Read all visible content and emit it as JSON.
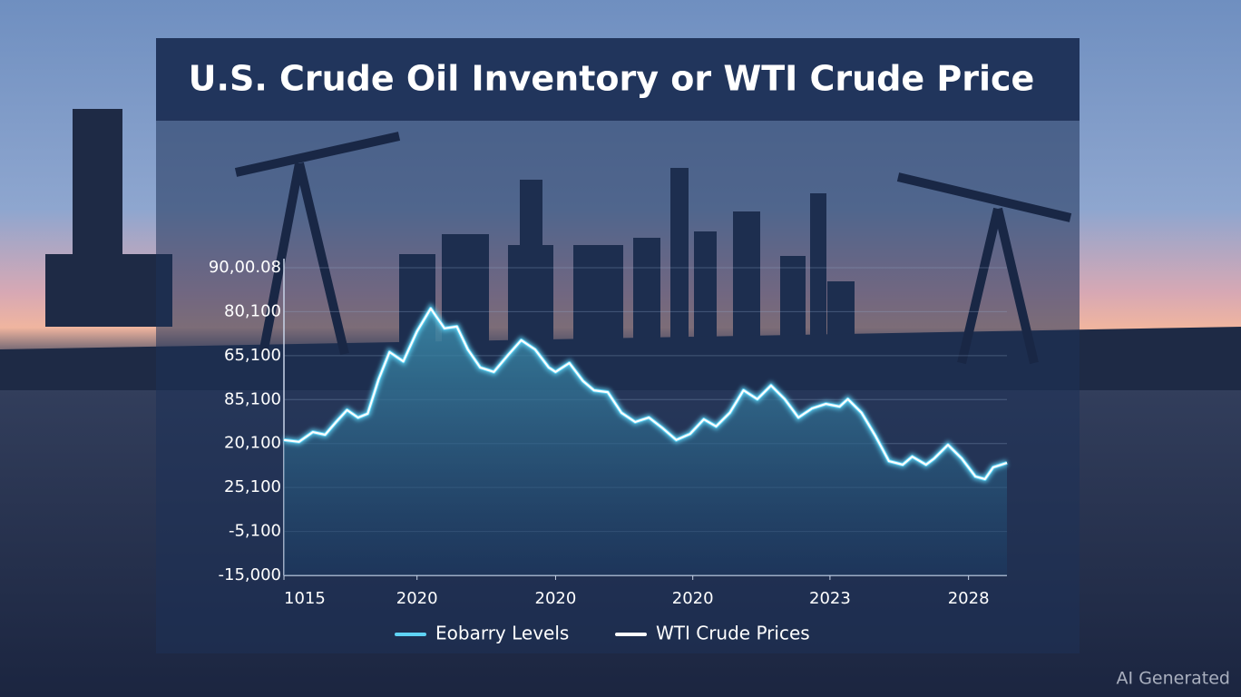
{
  "chart_data": {
    "type": "line",
    "title": "U.S. Crude Oil Inventory or WTI Crude Price",
    "watermark": "AI Generated",
    "x": [
      0,
      0.11,
      0.21,
      0.3,
      0.38,
      0.46,
      0.54,
      0.61,
      0.69,
      0.77,
      0.87,
      0.97,
      1.07,
      1.17,
      1.26,
      1.34,
      1.43,
      1.53,
      1.63,
      1.73,
      1.83,
      1.93,
      1.98,
      2.08,
      2.18,
      2.26,
      2.36,
      2.46,
      2.56,
      2.66,
      2.76,
      2.86,
      2.96,
      3.06,
      3.15,
      3.25,
      3.35,
      3.45,
      3.55,
      3.65,
      3.75,
      3.85,
      3.95,
      4.05,
      4.11,
      4.21,
      4.31,
      4.41,
      4.51,
      4.58,
      4.68,
      4.74,
      4.84,
      4.94,
      5.04,
      5.11,
      5.17,
      5.27
    ],
    "series": [
      {
        "name": "Eobarry Levels",
        "color": "#5fd3f5",
        "values": [
          3.08,
          3.04,
          3.26,
          3.2,
          3.49,
          3.76,
          3.59,
          3.68,
          4.46,
          5.08,
          4.87,
          5.55,
          6.07,
          5.62,
          5.66,
          5.14,
          4.73,
          4.63,
          5.0,
          5.35,
          5.14,
          4.73,
          4.63,
          4.83,
          4.42,
          4.21,
          4.17,
          3.7,
          3.49,
          3.59,
          3.35,
          3.08,
          3.22,
          3.55,
          3.39,
          3.7,
          4.21,
          4.01,
          4.32,
          4.01,
          3.59,
          3.8,
          3.9,
          3.84,
          4.01,
          3.7,
          3.18,
          2.6,
          2.52,
          2.7,
          2.52,
          2.66,
          2.97,
          2.66,
          2.25,
          2.19,
          2.46,
          2.56
        ]
      },
      {
        "name": "WTI Crude Prices",
        "color": "#ffffff",
        "values": [
          3.08,
          3.04,
          3.26,
          3.2,
          3.49,
          3.76,
          3.59,
          3.68,
          4.46,
          5.08,
          4.87,
          5.55,
          6.07,
          5.62,
          5.66,
          5.14,
          4.73,
          4.63,
          5.0,
          5.35,
          5.14,
          4.73,
          4.63,
          4.83,
          4.42,
          4.21,
          4.17,
          3.7,
          3.49,
          3.59,
          3.35,
          3.08,
          3.22,
          3.55,
          3.39,
          3.7,
          4.21,
          4.01,
          4.32,
          4.01,
          3.59,
          3.8,
          3.9,
          3.84,
          4.01,
          3.7,
          3.18,
          2.6,
          2.52,
          2.7,
          2.52,
          2.66,
          2.97,
          2.66,
          2.25,
          2.19,
          2.46,
          2.56
        ]
      }
    ],
    "xlim": [
      0,
      5.27
    ],
    "xticks": [
      {
        "value": 0,
        "label": "1015"
      },
      {
        "value": 0.97,
        "label": "2020"
      },
      {
        "value": 1.98,
        "label": "2020"
      },
      {
        "value": 2.98,
        "label": "2020"
      },
      {
        "value": 3.98,
        "label": "2023"
      },
      {
        "value": 4.99,
        "label": "2028"
      }
    ],
    "ylim": [
      0,
      7
    ],
    "yticks": [
      {
        "value": 7,
        "label": "90,00.08"
      },
      {
        "value": 6,
        "label": "80,100"
      },
      {
        "value": 5,
        "label": "65,100"
      },
      {
        "value": 4,
        "label": "85,100"
      },
      {
        "value": 3,
        "label": "20,100"
      },
      {
        "value": 2,
        "label": "25,100"
      },
      {
        "value": 1,
        "label": "-5,100"
      },
      {
        "value": 0,
        "label": "-15,000"
      }
    ],
    "grid": true
  }
}
